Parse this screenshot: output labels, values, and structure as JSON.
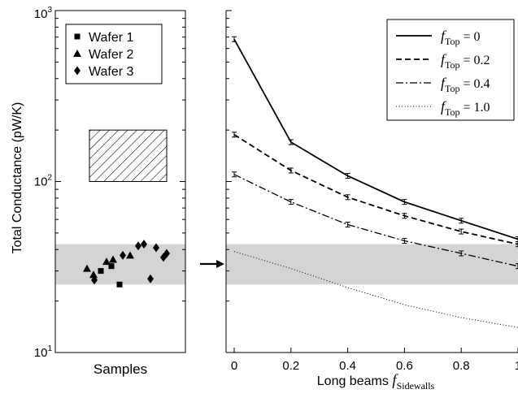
{
  "chart_data": [
    {
      "type": "scatter",
      "xlabel": "Samples",
      "ylabel": "Total Conductance (pW/K)",
      "y_scale": "log",
      "ylim": [
        10,
        1000
      ],
      "y_ticks": [
        {
          "base": "10",
          "exp": "1"
        },
        {
          "base": "10",
          "exp": "2"
        },
        {
          "base": "10",
          "exp": "3"
        }
      ],
      "legend_position": "top-left",
      "series": [
        {
          "name": "Wafer 1",
          "marker": "square",
          "values": [
            30,
            32,
            25
          ]
        },
        {
          "name": "Wafer 2",
          "marker": "triangle",
          "values": [
            31,
            28.5,
            34,
            35,
            37
          ]
        },
        {
          "name": "Wafer 3",
          "marker": "diamond",
          "values": [
            26.5,
            37,
            42,
            43,
            27,
            41,
            36,
            38
          ]
        }
      ],
      "shaded_band": [
        25,
        43
      ],
      "hatched_box": [
        100,
        200
      ]
    },
    {
      "type": "line",
      "xlabel_main": "Long beams ",
      "xlabel_f": "f",
      "xlabel_sub": "Sidewalls",
      "y_scale": "log",
      "ylim": [
        10,
        1000
      ],
      "xlim": [
        -0.02,
        1.0
      ],
      "x": [
        0,
        0.2,
        0.4,
        0.6,
        0.8,
        1
      ],
      "x_tick_labels": [
        "0",
        "0.2",
        "0.4",
        "0.6",
        "0.8",
        "1"
      ],
      "legend_position": "top-right",
      "series": [
        {
          "name_f": "f",
          "name_sub": "Top",
          "name_val": " = 0",
          "style": "solid",
          "values": [
            680,
            170,
            108,
            76,
            59,
            46
          ]
        },
        {
          "name_f": "f",
          "name_sub": "Top",
          "name_val": " = 0.2",
          "style": "dashed",
          "values": [
            188,
            116,
            81,
            63,
            51,
            43
          ]
        },
        {
          "name_f": "f",
          "name_sub": "Top",
          "name_val": " = 0.4",
          "style": "dashdot",
          "values": [
            110,
            76,
            56,
            45,
            38,
            32
          ]
        },
        {
          "name_f": "f",
          "name_sub": "Top",
          "name_val": " = 1.0",
          "style": "dotted",
          "values": [
            39,
            31,
            24,
            19,
            16,
            14
          ]
        }
      ],
      "shaded_band": [
        25,
        43
      ]
    }
  ]
}
